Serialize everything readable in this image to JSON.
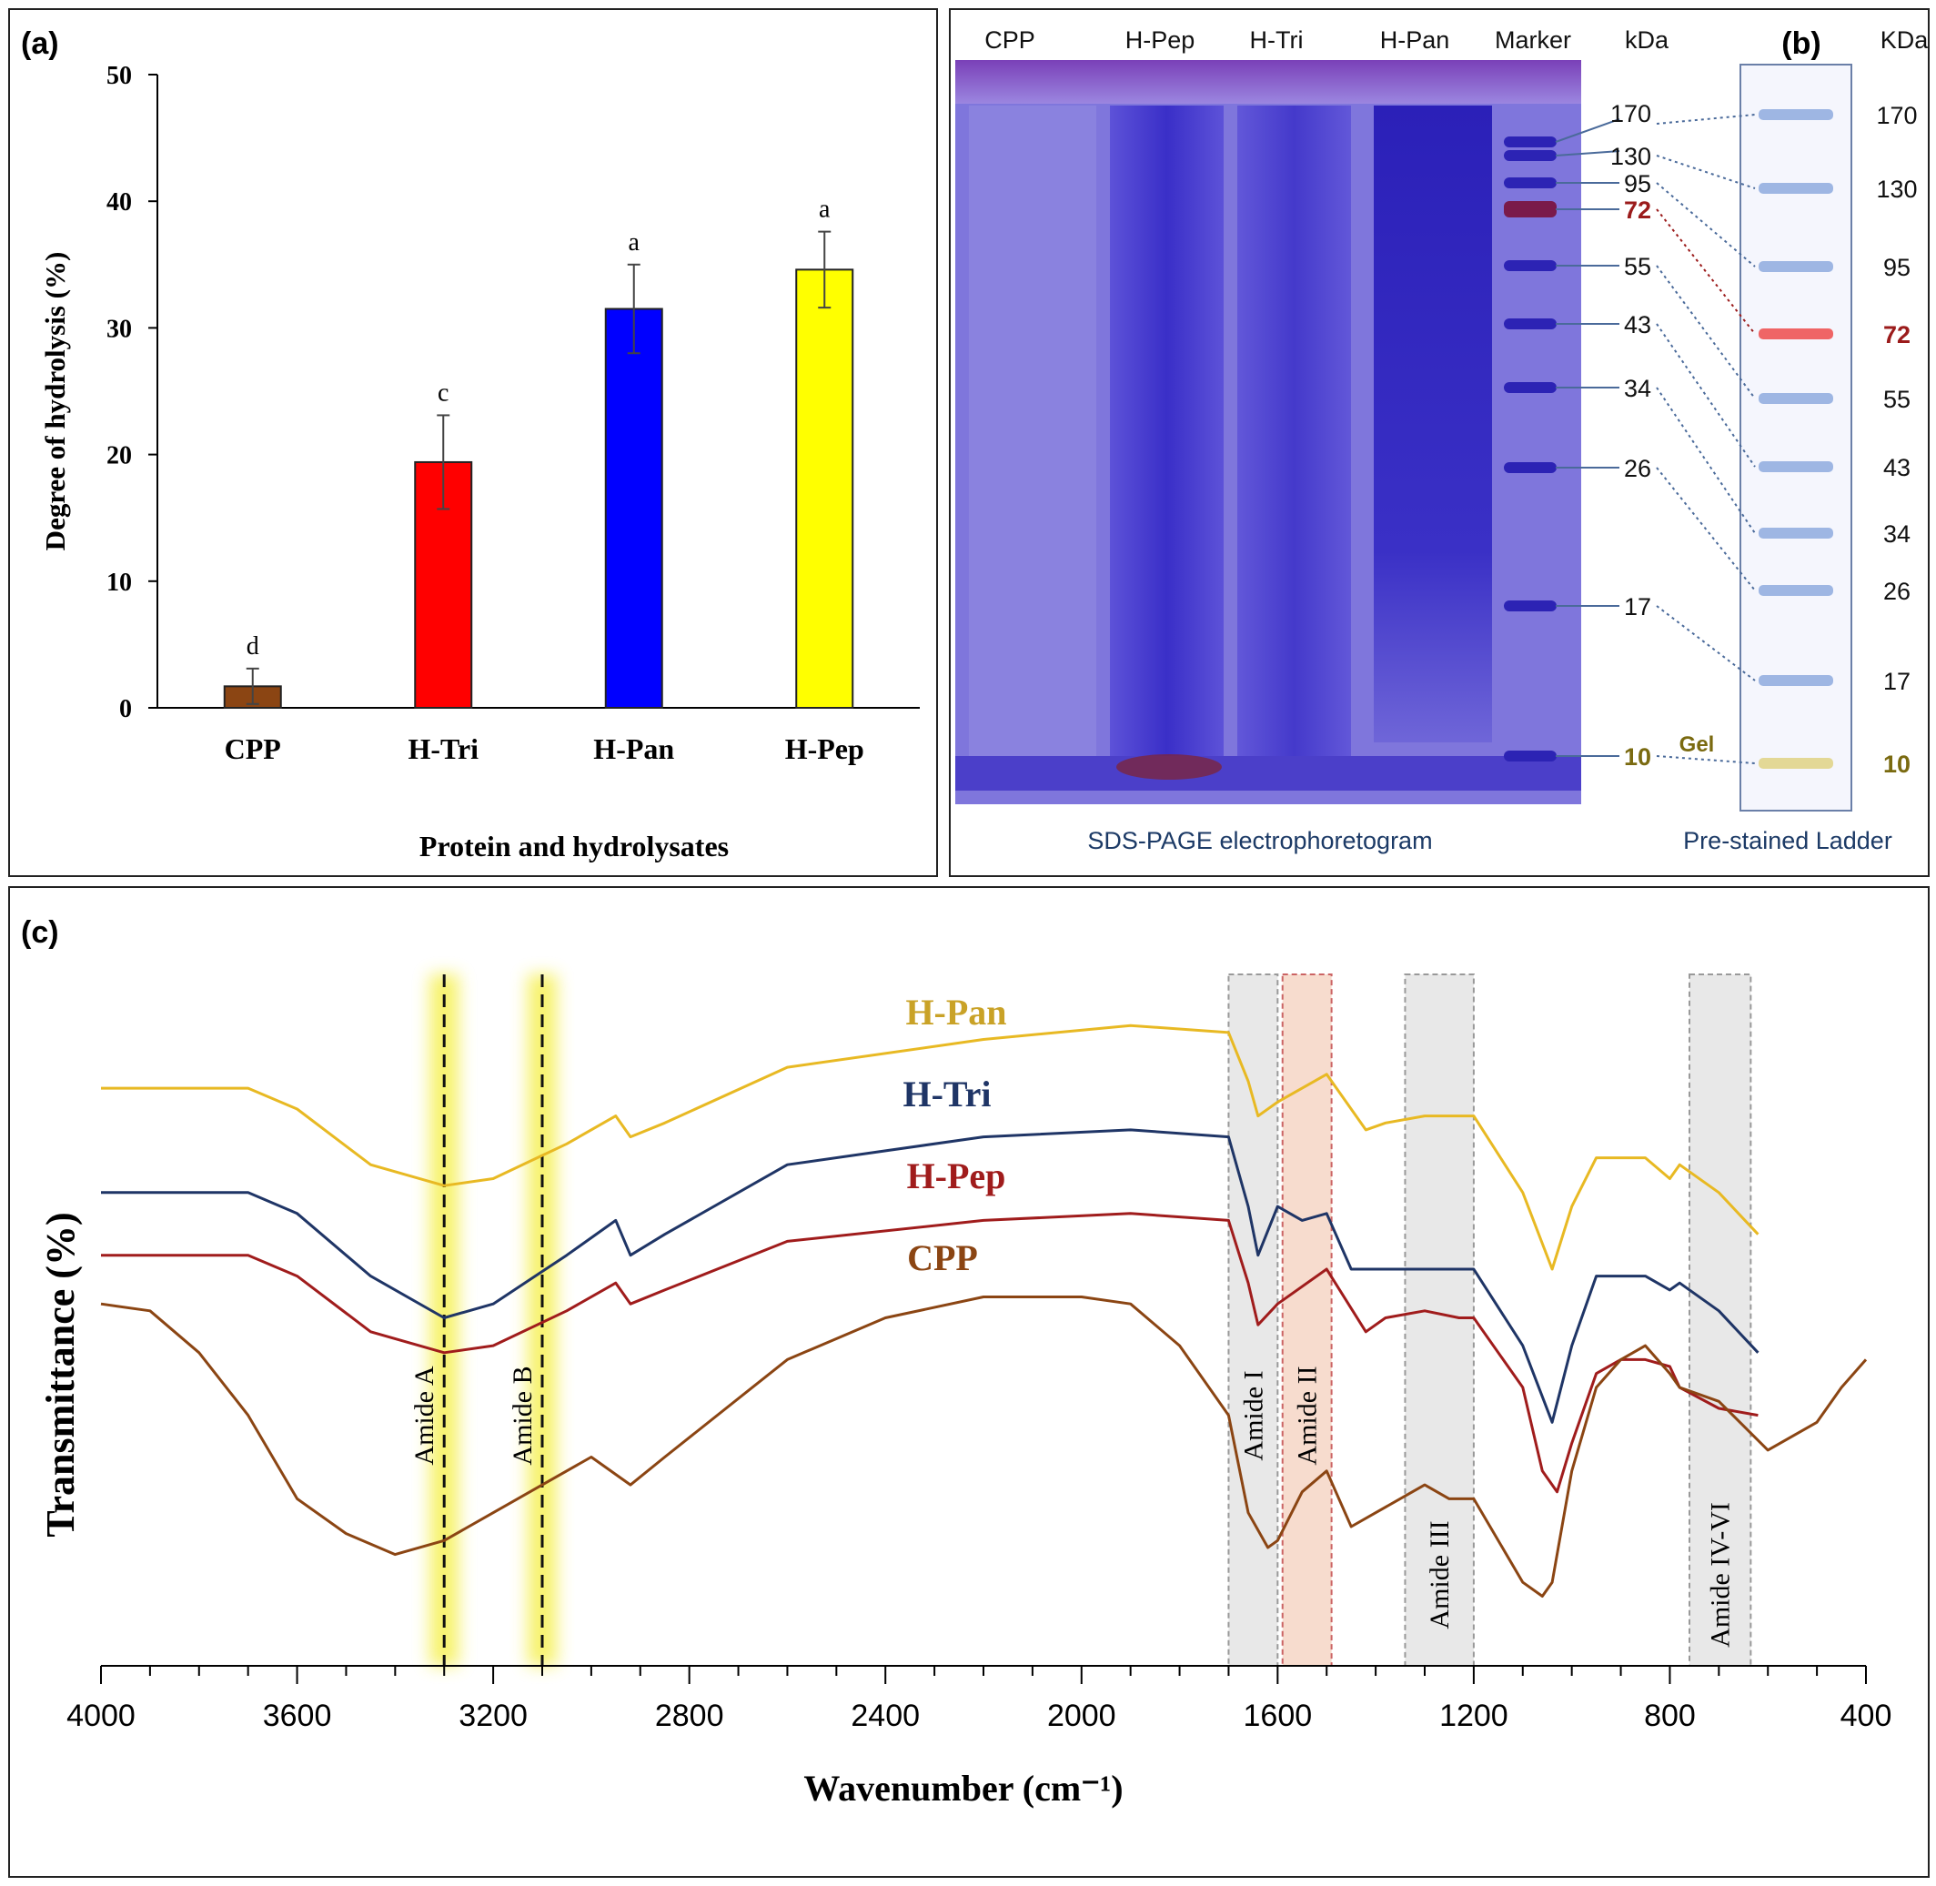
{
  "panel_a": {
    "label": "(a)",
    "chart_data": {
      "type": "bar",
      "categories": [
        "CPP",
        "H-Tri",
        "H-Pan",
        "H-Pep"
      ],
      "values": [
        1.7,
        19.4,
        31.5,
        34.6
      ],
      "errors": [
        1.4,
        3.7,
        3.5,
        3.0
      ],
      "letters": [
        "d",
        "c",
        "a",
        "a"
      ],
      "colors": [
        "#8B4513",
        "#FF0000",
        "#0000FF",
        "#FFFF00"
      ],
      "ylim": [
        0,
        50
      ],
      "yticks": [
        0,
        10,
        20,
        30,
        40,
        50
      ],
      "ylabel": "Degree of hydrolysis (%)",
      "xlabel": "Protein and hydrolysates"
    }
  },
  "panel_b": {
    "label": "(b)",
    "lane_labels": [
      "CPP",
      "H-Pep",
      "H-Tri",
      "H-Pan",
      "Marker"
    ],
    "kda_label": "kDa",
    "kda_label_right": "KDa",
    "marker_kda": [
      "170",
      "130",
      "95",
      "72",
      "55",
      "43",
      "34",
      "26",
      "17",
      "10"
    ],
    "gel_label": "Gel",
    "gel_caption": "SDS-PAGE electrophoretogram",
    "ladder_caption": "Pre-stained Ladder",
    "colors": {
      "gel": "#4a3fd0",
      "gel_light": "#9a93e6",
      "highlight": "#9b1b1b",
      "gel_text": "#7a6a10"
    }
  },
  "panel_c": {
    "label": "(c)",
    "chart_data": {
      "type": "line",
      "xlabel": "Wavenumber (cm⁻¹)",
      "ylabel": "Transmittance (%)",
      "xlim": [
        4000,
        400
      ],
      "xticks": [
        4000,
        3600,
        3200,
        2800,
        2400,
        2000,
        1600,
        1200,
        800,
        400
      ],
      "series": [
        {
          "name": "H-Pan",
          "color": "#e8b923",
          "label_color": "#c9a227",
          "x": [
            4000,
            3700,
            3600,
            3450,
            3300,
            3200,
            3050,
            2950,
            2920,
            2850,
            2600,
            2200,
            1900,
            1700,
            1660,
            1640,
            1600,
            1500,
            1420,
            1380,
            1300,
            1230,
            1200,
            1100,
            1040,
            1000,
            950,
            900,
            850,
            800,
            780,
            700,
            620
          ],
          "y": [
            83,
            83,
            80,
            72,
            69,
            70,
            75,
            79,
            76,
            78,
            86,
            90,
            92,
            91,
            84,
            79,
            81,
            85,
            77,
            78,
            79,
            79,
            79,
            68,
            57,
            66,
            73,
            73,
            73,
            70,
            72,
            68,
            62
          ]
        },
        {
          "name": "H-Tri",
          "color": "#1f3566",
          "label_color": "#1f3566",
          "x": [
            4000,
            3700,
            3600,
            3450,
            3300,
            3200,
            3050,
            2950,
            2920,
            2850,
            2600,
            2200,
            1900,
            1700,
            1660,
            1640,
            1600,
            1550,
            1500,
            1450,
            1400,
            1300,
            1250,
            1200,
            1100,
            1040,
            1000,
            950,
            900,
            850,
            800,
            780,
            700,
            620
          ],
          "y": [
            68,
            68,
            65,
            56,
            50,
            52,
            59,
            64,
            59,
            62,
            72,
            76,
            77,
            76,
            66,
            59,
            66,
            64,
            65,
            57,
            57,
            57,
            57,
            57,
            46,
            35,
            46,
            56,
            56,
            56,
            54,
            55,
            51,
            45
          ]
        },
        {
          "name": "H-Pep",
          "color": "#a01c1c",
          "label_color": "#a01c1c",
          "x": [
            4000,
            3700,
            3600,
            3450,
            3300,
            3200,
            3050,
            2950,
            2920,
            2850,
            2600,
            2200,
            1900,
            1700,
            1660,
            1640,
            1600,
            1500,
            1420,
            1380,
            1300,
            1230,
            1200,
            1100,
            1060,
            1030,
            1000,
            950,
            900,
            850,
            800,
            780,
            700,
            620
          ],
          "y": [
            59,
            59,
            56,
            48,
            45,
            46,
            51,
            55,
            52,
            54,
            61,
            64,
            65,
            64,
            55,
            49,
            52,
            57,
            48,
            50,
            51,
            50,
            50,
            40,
            28,
            25,
            32,
            42,
            44,
            44,
            43,
            40,
            37,
            36
          ]
        },
        {
          "name": "CPP",
          "color": "#8B4513",
          "label_color": "#8B4513",
          "x": [
            4000,
            3900,
            3800,
            3700,
            3600,
            3500,
            3400,
            3300,
            3200,
            3100,
            3000,
            2920,
            2850,
            2600,
            2400,
            2200,
            2000,
            1900,
            1800,
            1700,
            1660,
            1620,
            1600,
            1550,
            1500,
            1450,
            1400,
            1300,
            1250,
            1200,
            1100,
            1060,
            1040,
            1000,
            950,
            900,
            850,
            800,
            780,
            700,
            600,
            500,
            450,
            400
          ],
          "y": [
            52,
            51,
            45,
            36,
            24,
            19,
            16,
            18,
            22,
            26,
            30,
            26,
            30,
            44,
            50,
            53,
            53,
            52,
            46,
            36,
            22,
            17,
            18,
            25,
            28,
            20,
            22,
            26,
            24,
            24,
            12,
            10,
            12,
            28,
            40,
            44,
            46,
            42,
            40,
            38,
            31,
            35,
            40,
            44
          ]
        }
      ],
      "bands": [
        {
          "label": "Amide A",
          "type": "line",
          "x": 3300
        },
        {
          "label": "Amide B",
          "type": "line",
          "x": 3100
        },
        {
          "label": "Amide I",
          "type": "box",
          "x0": 1700,
          "x1": 1600,
          "color": "#e4e4e4"
        },
        {
          "label": "Amide II",
          "type": "box",
          "x0": 1590,
          "x1": 1490,
          "color": "#f6d6c6"
        },
        {
          "label": "Amide III",
          "type": "box",
          "x0": 1340,
          "x1": 1200,
          "color": "#e4e4e4"
        },
        {
          "label": "Amide IV-VI",
          "type": "box",
          "x0": 760,
          "x1": 635,
          "color": "#e4e4e4"
        }
      ],
      "ghost_ticks": [
        "1600",
        "1200",
        "800"
      ]
    }
  }
}
